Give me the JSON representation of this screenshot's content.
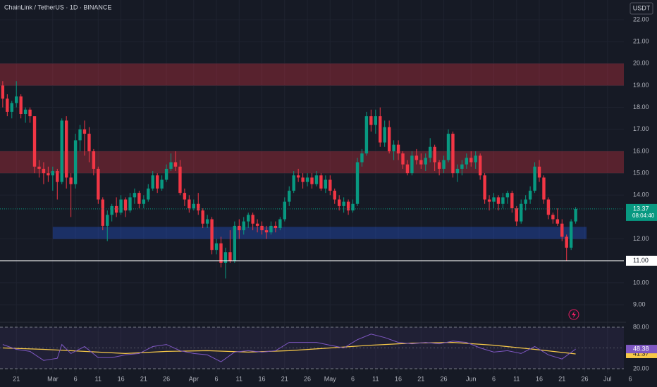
{
  "chart_data": {
    "type": "candlestick",
    "title": "ChainLink / TetherUS · 1D · BINANCE",
    "currency": "USDT",
    "countdown": "08:04:40",
    "up_color": "#089981",
    "down_color": "#f23645",
    "x": [
      49,
      50,
      51,
      52,
      53,
      54,
      55,
      56,
      57,
      58,
      59,
      60,
      61,
      62,
      63,
      64,
      65,
      66,
      67,
      68,
      69,
      70,
      71,
      72,
      73,
      74,
      75,
      76,
      77,
      78,
      79,
      80,
      81,
      82,
      83,
      84,
      85,
      86,
      87,
      88,
      89,
      90,
      91,
      92,
      93,
      94,
      95,
      96,
      97,
      98,
      99,
      100,
      101,
      102,
      103,
      104,
      105,
      106,
      107,
      108,
      109,
      110,
      111,
      112,
      113,
      114,
      115,
      116,
      117,
      118,
      119,
      120,
      121,
      122,
      123,
      124,
      125,
      126,
      127,
      128,
      129,
      130,
      131,
      132,
      133,
      134,
      135,
      136,
      137,
      138,
      139,
      140,
      141,
      142,
      143,
      144,
      145,
      146,
      147,
      148,
      149,
      150,
      151,
      152,
      153,
      154,
      155,
      156,
      157,
      158,
      159,
      160,
      161,
      162,
      163,
      164,
      165,
      166,
      167,
      168,
      169,
      170,
      171,
      172,
      173,
      174,
      175
    ],
    "ohlc": [
      [
        19.0,
        19.2,
        18.0,
        18.4
      ],
      [
        18.4,
        18.6,
        17.6,
        17.8
      ],
      [
        17.8,
        18.3,
        17.5,
        18.2
      ],
      [
        18.2,
        19.2,
        18.0,
        18.5
      ],
      [
        18.5,
        18.6,
        17.5,
        17.7
      ],
      [
        17.7,
        18.0,
        17.3,
        17.9
      ],
      [
        17.9,
        18.0,
        17.3,
        17.6
      ],
      [
        17.6,
        17.6,
        15.0,
        15.3
      ],
      [
        15.3,
        15.6,
        14.8,
        15.2
      ],
      [
        15.2,
        15.5,
        14.5,
        15.0
      ],
      [
        15.0,
        15.3,
        14.6,
        14.9
      ],
      [
        14.9,
        15.3,
        14.2,
        15.1
      ],
      [
        15.1,
        15.2,
        13.8,
        14.6
      ],
      [
        14.6,
        17.5,
        14.5,
        17.4
      ],
      [
        17.4,
        17.6,
        14.3,
        14.8
      ],
      [
        14.8,
        15.0,
        13.0,
        14.5
      ],
      [
        14.5,
        16.8,
        14.3,
        16.5
      ],
      [
        16.5,
        17.2,
        16.0,
        17.0
      ],
      [
        17.0,
        17.4,
        15.8,
        16.8
      ],
      [
        16.8,
        17.1,
        15.5,
        16.0
      ],
      [
        16.0,
        16.1,
        14.9,
        15.2
      ],
      [
        15.2,
        15.3,
        13.6,
        13.8
      ],
      [
        13.8,
        13.9,
        12.4,
        12.6
      ],
      [
        12.6,
        13.3,
        11.9,
        13.1
      ],
      [
        13.1,
        13.6,
        12.8,
        13.5
      ],
      [
        13.5,
        13.9,
        13.0,
        13.2
      ],
      [
        13.2,
        14.0,
        13.1,
        13.8
      ],
      [
        13.8,
        13.9,
        13.0,
        13.3
      ],
      [
        13.3,
        14.1,
        13.2,
        13.9
      ],
      [
        13.9,
        14.3,
        13.6,
        14.1
      ],
      [
        14.1,
        14.2,
        13.4,
        13.6
      ],
      [
        13.6,
        14.0,
        13.4,
        13.8
      ],
      [
        13.8,
        14.5,
        13.7,
        14.3
      ],
      [
        14.3,
        15.1,
        14.2,
        14.9
      ],
      [
        14.9,
        15.0,
        14.1,
        14.3
      ],
      [
        14.3,
        14.9,
        14.2,
        14.7
      ],
      [
        14.7,
        15.4,
        14.6,
        15.2
      ],
      [
        15.2,
        15.9,
        15.1,
        15.5
      ],
      [
        15.5,
        16.0,
        15.1,
        15.3
      ],
      [
        15.3,
        15.6,
        14.0,
        14.1
      ],
      [
        14.1,
        14.3,
        13.5,
        13.8
      ],
      [
        13.8,
        14.0,
        13.2,
        13.4
      ],
      [
        13.4,
        13.8,
        13.3,
        13.6
      ],
      [
        13.6,
        14.1,
        13.1,
        13.3
      ],
      [
        13.3,
        13.4,
        12.5,
        12.7
      ],
      [
        12.7,
        13.1,
        12.5,
        12.9
      ],
      [
        12.9,
        13.0,
        11.3,
        11.5
      ],
      [
        11.5,
        12.0,
        11.3,
        11.8
      ],
      [
        11.8,
        12.1,
        10.7,
        10.9
      ],
      [
        10.9,
        11.6,
        10.2,
        11.4
      ],
      [
        11.4,
        12.4,
        10.9,
        11.0
      ],
      [
        11.0,
        12.8,
        10.9,
        12.6
      ],
      [
        12.6,
        12.9,
        12.0,
        12.4
      ],
      [
        12.4,
        13.0,
        12.2,
        12.8
      ],
      [
        12.8,
        13.2,
        12.5,
        13.1
      ],
      [
        13.1,
        13.2,
        12.4,
        12.7
      ],
      [
        12.7,
        12.9,
        12.3,
        12.6
      ],
      [
        12.6,
        12.8,
        12.2,
        12.4
      ],
      [
        12.4,
        12.6,
        12.0,
        12.3
      ],
      [
        12.3,
        12.8,
        12.2,
        12.6
      ],
      [
        12.6,
        12.8,
        12.3,
        12.5
      ],
      [
        12.5,
        13.0,
        12.4,
        12.9
      ],
      [
        12.9,
        13.9,
        12.8,
        13.7
      ],
      [
        13.7,
        14.4,
        13.5,
        14.2
      ],
      [
        14.2,
        15.1,
        14.1,
        14.9
      ],
      [
        14.9,
        15.2,
        14.6,
        14.8
      ],
      [
        14.8,
        15.0,
        14.3,
        14.6
      ],
      [
        14.6,
        15.0,
        14.4,
        14.8
      ],
      [
        14.8,
        15.0,
        14.3,
        14.5
      ],
      [
        14.5,
        15.1,
        14.4,
        14.9
      ],
      [
        14.9,
        15.0,
        14.2,
        14.3
      ],
      [
        14.3,
        14.9,
        14.1,
        14.7
      ],
      [
        14.7,
        14.9,
        14.0,
        14.2
      ],
      [
        14.2,
        14.3,
        13.6,
        13.8
      ],
      [
        13.8,
        14.0,
        13.3,
        13.5
      ],
      [
        13.5,
        13.9,
        13.2,
        13.7
      ],
      [
        13.7,
        13.8,
        13.1,
        13.3
      ],
      [
        13.3,
        13.8,
        13.2,
        13.6
      ],
      [
        13.6,
        15.7,
        13.5,
        15.5
      ],
      [
        15.5,
        16.1,
        15.3,
        15.9
      ],
      [
        15.9,
        17.8,
        15.8,
        17.6
      ],
      [
        17.6,
        17.9,
        16.9,
        17.2
      ],
      [
        17.2,
        17.9,
        16.8,
        17.6
      ],
      [
        17.6,
        18.0,
        16.2,
        16.4
      ],
      [
        16.4,
        17.4,
        16.2,
        17.1
      ],
      [
        17.1,
        17.4,
        15.9,
        16.0
      ],
      [
        16.0,
        16.5,
        15.6,
        16.3
      ],
      [
        16.3,
        16.5,
        15.6,
        15.9
      ],
      [
        15.9,
        16.0,
        15.2,
        15.4
      ],
      [
        15.4,
        15.6,
        14.9,
        15.0
      ],
      [
        15.0,
        16.0,
        14.9,
        15.8
      ],
      [
        15.8,
        16.1,
        15.4,
        15.6
      ],
      [
        15.6,
        15.9,
        15.2,
        15.4
      ],
      [
        15.4,
        15.9,
        15.1,
        15.7
      ],
      [
        15.7,
        16.6,
        15.5,
        16.2
      ],
      [
        16.2,
        16.3,
        15.1,
        15.5
      ],
      [
        15.5,
        15.6,
        14.9,
        15.2
      ],
      [
        15.2,
        15.8,
        15.0,
        15.6
      ],
      [
        15.6,
        17.0,
        15.5,
        16.8
      ],
      [
        16.8,
        16.9,
        14.8,
        15.0
      ],
      [
        15.0,
        15.4,
        14.6,
        15.2
      ],
      [
        15.2,
        15.6,
        14.9,
        15.4
      ],
      [
        15.4,
        15.9,
        15.2,
        15.7
      ],
      [
        15.7,
        16.0,
        15.3,
        15.5
      ],
      [
        15.5,
        16.0,
        15.2,
        15.8
      ],
      [
        15.8,
        15.9,
        14.7,
        14.9
      ],
      [
        14.9,
        15.0,
        13.6,
        13.8
      ],
      [
        13.8,
        14.0,
        13.3,
        13.7
      ],
      [
        13.7,
        14.1,
        13.4,
        13.9
      ],
      [
        13.9,
        14.0,
        13.3,
        13.6
      ],
      [
        13.6,
        14.1,
        13.4,
        13.9
      ],
      [
        13.9,
        14.2,
        13.6,
        14.1
      ],
      [
        14.1,
        14.2,
        13.2,
        13.4
      ],
      [
        13.4,
        13.5,
        12.6,
        12.8
      ],
      [
        12.8,
        13.8,
        12.7,
        13.6
      ],
      [
        13.6,
        14.0,
        13.3,
        13.8
      ],
      [
        13.8,
        14.4,
        13.6,
        14.2
      ],
      [
        14.2,
        15.5,
        14.1,
        15.3
      ],
      [
        15.3,
        15.6,
        14.6,
        14.8
      ],
      [
        14.8,
        14.9,
        13.6,
        13.8
      ],
      [
        13.8,
        13.9,
        12.9,
        13.1
      ],
      [
        13.1,
        13.2,
        12.7,
        12.9
      ],
      [
        12.9,
        13.4,
        12.6,
        12.7
      ],
      [
        12.7,
        12.9,
        11.9,
        12.1
      ],
      [
        12.1,
        12.2,
        11.0,
        11.6
      ],
      [
        11.6,
        12.9,
        11.5,
        12.8
      ],
      [
        12.8,
        13.45,
        12.7,
        13.37
      ]
    ],
    "xlim": [
      48.4,
      185.6
    ],
    "xticks": [
      {
        "value": 52,
        "label": "21"
      },
      {
        "value": 60,
        "label": "Mar"
      },
      {
        "value": 65,
        "label": "6"
      },
      {
        "value": 70,
        "label": "11"
      },
      {
        "value": 75,
        "label": "16"
      },
      {
        "value": 80,
        "label": "21"
      },
      {
        "value": 85,
        "label": "26"
      },
      {
        "value": 91,
        "label": "Apr"
      },
      {
        "value": 96,
        "label": "6"
      },
      {
        "value": 101,
        "label": "11"
      },
      {
        "value": 106,
        "label": "16"
      },
      {
        "value": 111,
        "label": "21"
      },
      {
        "value": 116,
        "label": "26"
      },
      {
        "value": 121,
        "label": "May"
      },
      {
        "value": 126,
        "label": "6"
      },
      {
        "value": 131,
        "label": "11"
      },
      {
        "value": 136,
        "label": "16"
      },
      {
        "value": 141,
        "label": "21"
      },
      {
        "value": 146,
        "label": "26"
      },
      {
        "value": 152,
        "label": "Jun"
      },
      {
        "value": 157,
        "label": "6"
      },
      {
        "value": 162,
        "label": "11"
      },
      {
        "value": 167,
        "label": "16"
      },
      {
        "value": 172,
        "label": "21"
      },
      {
        "value": 177,
        "label": "26"
      },
      {
        "value": 182,
        "label": "Jul"
      },
      {
        "value": 187,
        "label": "6"
      }
    ],
    "ylim": [
      8.2,
      22.9
    ],
    "yticks": [
      {
        "value": 22,
        "label": "22.00"
      },
      {
        "value": 21,
        "label": "21.00"
      },
      {
        "value": 20,
        "label": "20.00"
      },
      {
        "value": 19,
        "label": "19.00"
      },
      {
        "value": 18,
        "label": "18.00"
      },
      {
        "value": 17,
        "label": "17.00"
      },
      {
        "value": 16,
        "label": "16.00"
      },
      {
        "value": 15,
        "label": "15.00"
      },
      {
        "value": 14,
        "label": "14.00"
      },
      {
        "value": 12,
        "label": "12.00"
      },
      {
        "value": 10,
        "label": "10.00"
      },
      {
        "value": 9,
        "label": "9.00"
      }
    ],
    "hline": {
      "value": 11,
      "label": "11.00",
      "color": "#ffffff"
    },
    "zones": [
      {
        "low": 19,
        "high": 20,
        "color": "#f23645"
      },
      {
        "low": 15,
        "high": 16,
        "color": "#f23645"
      },
      {
        "low": 12,
        "high": 12.55,
        "x": [
          60,
          177.4
        ],
        "color": "#2962ff"
      }
    ],
    "rsi": {
      "color": "#7e57c2",
      "x": [
        49,
        52,
        55,
        58,
        61,
        62,
        64,
        67,
        70,
        73,
        76,
        79,
        82,
        85,
        88,
        91,
        94,
        97,
        100,
        103,
        106,
        109,
        112,
        115,
        118,
        121,
        124,
        127,
        130,
        133,
        136,
        139,
        142,
        145,
        148,
        151,
        154,
        157,
        160,
        163,
        166,
        169,
        172,
        175
      ],
      "values": [
        55,
        48,
        45,
        32,
        35,
        55,
        42,
        52,
        36,
        36,
        40,
        42,
        52,
        55,
        46,
        42,
        40,
        30,
        44,
        46,
        44,
        46,
        58,
        58,
        58,
        54,
        50,
        62,
        70,
        65,
        58,
        56,
        58,
        56,
        60,
        58,
        50,
        44,
        46,
        42,
        52,
        40,
        34,
        48.38
      ]
    },
    "rsi_ma": {
      "color": "#f7c948",
      "x": [
        49,
        58,
        67,
        76,
        85,
        94,
        103,
        112,
        121,
        130,
        139,
        148,
        157,
        166,
        175
      ],
      "values": [
        50,
        48,
        45,
        42,
        45,
        46,
        44,
        46,
        50,
        54,
        57,
        58,
        54,
        48,
        41.37
      ]
    },
    "rsi_ylim": [
      13.9,
      87.1
    ],
    "rsi_yticks": [
      {
        "value": 80,
        "label": "80.00"
      },
      {
        "value": 20,
        "label": "20.00"
      }
    ],
    "rsi_midline": 50
  }
}
